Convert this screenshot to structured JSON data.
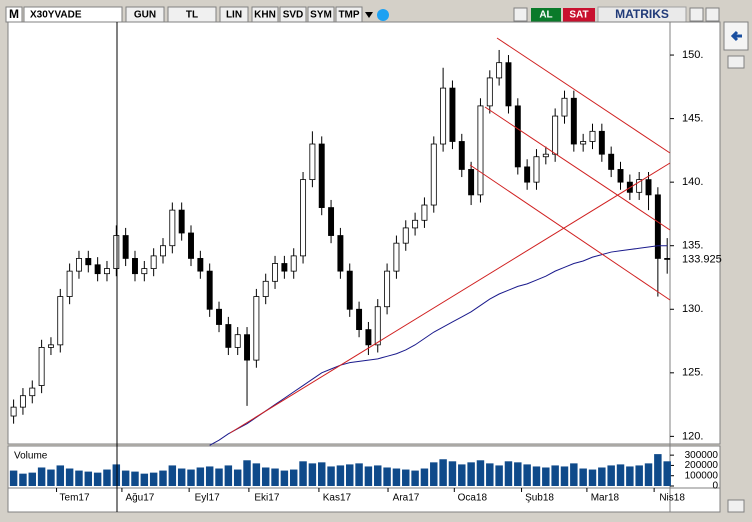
{
  "toolbar": {
    "logo": "M",
    "symbol": "X30YVADE",
    "buttons": [
      "GUN",
      "TL",
      "LIN",
      "KHN",
      "SVD",
      "SYM",
      "TMP"
    ],
    "buy": "AL",
    "sell": "SAT",
    "brand": "MATRIKS"
  },
  "chart_data": {
    "type": "candlestick",
    "xlim": [
      -0.6,
      70.3
    ],
    "xticks": [
      {
        "value": 4.6,
        "label": "Tem17"
      },
      {
        "value": 11.6,
        "label": "Ağu17"
      },
      {
        "value": 18.8,
        "label": "Eyl17"
      },
      {
        "value": 25.2,
        "label": "Eki17"
      },
      {
        "value": 32.7,
        "label": "Kas17"
      },
      {
        "value": 40.1,
        "label": "Ara17"
      },
      {
        "value": 47.2,
        "label": "Oca18"
      },
      {
        "value": 54.4,
        "label": "Şub18"
      },
      {
        "value": 61.4,
        "label": "Mar18"
      },
      {
        "value": 68.6,
        "label": "Nis18"
      }
    ],
    "ylim": [
      119.4,
      152.6
    ],
    "yticks": [
      {
        "value": 120,
        "label": "120."
      },
      {
        "value": 125,
        "label": "125."
      },
      {
        "value": 130,
        "label": "130."
      },
      {
        "value": 135,
        "label": "135."
      },
      {
        "value": 140,
        "label": "140."
      },
      {
        "value": 145,
        "label": "145."
      },
      {
        "value": 150,
        "label": "150."
      }
    ],
    "color": "#000000",
    "open": [
      121.6,
      122.3,
      123.2,
      124.0,
      127.0,
      127.2,
      131.0,
      133.0,
      134.0,
      133.5,
      132.8,
      133.2,
      135.8,
      134.0,
      132.8,
      133.2,
      134.2,
      135.0,
      137.8,
      136.0,
      134.0,
      133.0,
      130.0,
      128.8,
      127.0,
      128.0,
      126.0,
      131.0,
      132.2,
      133.6,
      133.0,
      134.2,
      140.2,
      143.0,
      138.0,
      135.8,
      133.0,
      130.0,
      128.4,
      127.2,
      130.2,
      133.0,
      135.2,
      136.4,
      137.0,
      138.2,
      143.0,
      147.4,
      143.2,
      141.0,
      139.0,
      146.0,
      148.2,
      149.4,
      146.0,
      141.2,
      140.0,
      142.0,
      142.2,
      145.2,
      146.6,
      143.0,
      143.2,
      144.0,
      142.2,
      141.0,
      140.0,
      139.2,
      140.2,
      139.0,
      134.0
    ],
    "high": [
      122.9,
      123.8,
      124.4,
      127.6,
      127.8,
      131.6,
      133.6,
      134.6,
      134.6,
      134.1,
      133.8,
      136.6,
      136.4,
      134.6,
      133.8,
      134.8,
      135.6,
      138.4,
      138.4,
      136.6,
      134.6,
      133.6,
      130.6,
      129.4,
      128.6,
      128.6,
      131.6,
      132.8,
      134.2,
      134.2,
      134.8,
      140.8,
      144.0,
      143.6,
      138.6,
      136.4,
      133.6,
      130.6,
      129.0,
      130.8,
      133.6,
      135.8,
      137.0,
      137.6,
      138.8,
      143.6,
      149.0,
      148.0,
      143.8,
      141.6,
      146.6,
      148.8,
      150.4,
      150.0,
      146.6,
      141.8,
      142.6,
      142.8,
      145.8,
      147.2,
      147.2,
      143.8,
      144.6,
      144.6,
      142.8,
      141.6,
      140.6,
      140.8,
      140.8,
      139.6,
      135.6
    ],
    "low": [
      121.0,
      121.7,
      122.6,
      123.4,
      126.4,
      126.6,
      130.4,
      132.4,
      132.9,
      132.2,
      132.2,
      132.6,
      133.4,
      132.2,
      132.2,
      132.6,
      133.6,
      134.4,
      135.4,
      133.4,
      132.4,
      129.4,
      128.2,
      126.4,
      126.4,
      122.4,
      125.4,
      130.4,
      131.6,
      132.4,
      132.4,
      133.6,
      139.6,
      137.4,
      135.2,
      132.4,
      129.4,
      127.8,
      126.4,
      126.6,
      129.6,
      132.4,
      134.6,
      135.8,
      136.4,
      137.6,
      142.4,
      142.6,
      140.4,
      138.2,
      138.4,
      145.4,
      147.6,
      145.4,
      140.6,
      139.4,
      139.4,
      141.4,
      141.6,
      144.6,
      142.4,
      142.4,
      142.6,
      141.6,
      140.4,
      139.4,
      138.6,
      138.6,
      137.8,
      131.0,
      132.8
    ],
    "close": [
      122.3,
      123.2,
      123.8,
      127.0,
      127.2,
      131.0,
      133.0,
      134.0,
      133.5,
      132.8,
      133.2,
      135.8,
      134.0,
      132.8,
      133.2,
      134.2,
      135.0,
      137.8,
      136.0,
      134.0,
      133.0,
      130.0,
      128.8,
      127.0,
      128.0,
      126.0,
      131.0,
      132.2,
      133.6,
      133.0,
      134.2,
      140.2,
      143.0,
      138.0,
      135.8,
      133.0,
      130.0,
      128.4,
      127.2,
      130.2,
      133.0,
      135.2,
      136.4,
      137.0,
      138.2,
      143.0,
      147.4,
      143.2,
      141.0,
      139.0,
      146.0,
      148.2,
      149.4,
      146.0,
      141.2,
      140.0,
      142.0,
      142.2,
      145.2,
      146.6,
      143.0,
      143.2,
      144.0,
      142.2,
      141.0,
      140.0,
      139.2,
      140.2,
      139.0,
      134.0,
      133.925
    ],
    "ma": {
      "color": "#1a1a8c",
      "values": [
        null,
        null,
        null,
        null,
        null,
        null,
        null,
        null,
        null,
        null,
        null,
        null,
        null,
        null,
        null,
        null,
        null,
        null,
        null,
        null,
        null,
        119.3,
        119.7,
        120.2,
        120.6,
        121.0,
        121.5,
        122.0,
        122.5,
        123.0,
        123.5,
        124.0,
        124.5,
        125.0,
        125.3,
        125.6,
        125.8,
        125.9,
        126.0,
        126.1,
        126.3,
        126.5,
        126.8,
        127.2,
        127.7,
        128.2,
        128.6,
        129.0,
        129.4,
        129.8,
        130.3,
        130.8,
        131.2,
        131.5,
        131.8,
        132.0,
        132.3,
        132.6,
        133.0,
        133.3,
        133.6,
        133.8,
        134.1,
        134.3,
        134.5,
        134.6,
        134.7,
        134.8,
        134.9,
        135.0,
        135.0
      ]
    },
    "volume": {
      "title": "Volume",
      "color": "#0f4a8a",
      "ylim": [
        0,
        350000
      ],
      "yticks": [
        0,
        100000,
        200000,
        300000
      ],
      "values": [
        150000,
        120000,
        130000,
        180000,
        160000,
        200000,
        170000,
        150000,
        140000,
        130000,
        160000,
        210000,
        150000,
        140000,
        120000,
        130000,
        150000,
        200000,
        170000,
        160000,
        180000,
        190000,
        170000,
        200000,
        160000,
        250000,
        220000,
        180000,
        170000,
        150000,
        160000,
        240000,
        220000,
        230000,
        190000,
        200000,
        210000,
        220000,
        190000,
        200000,
        180000,
        170000,
        160000,
        150000,
        170000,
        230000,
        260000,
        240000,
        210000,
        230000,
        250000,
        220000,
        200000,
        240000,
        230000,
        210000,
        190000,
        180000,
        200000,
        190000,
        220000,
        170000,
        160000,
        180000,
        200000,
        210000,
        190000,
        200000,
        220000,
        310000,
        240000
      ]
    }
  }
}
